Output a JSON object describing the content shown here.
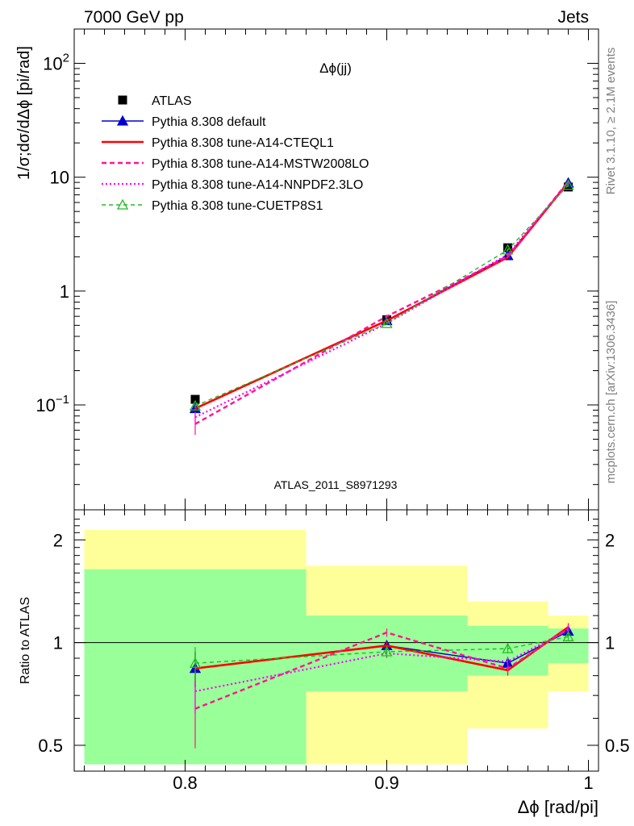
{
  "header": {
    "left": "7000 GeV pp",
    "right": "Jets"
  },
  "side_text": {
    "upper": "Rivet 3.1.10, ≥ 2.1M events",
    "lower": "mcplots.cern.ch [arXiv:1306.3436]"
  },
  "watermark": "ATLAS_2011_S8971293",
  "colors": {
    "atlas": "#000000",
    "default": "#0000cc",
    "a14cteql": "#ff0000",
    "a14mstw": "#ff1493",
    "a14nnpdf": "#ff00ff",
    "cuetp8s1": "#22bb22",
    "band_inner": "#99ff99",
    "band_outer": "#ffff99"
  },
  "chart_data": [
    {
      "type": "line",
      "title": "Δϕ(jj)",
      "ylabel": "1/σ;dσ/dΔϕ [pi/rad]",
      "yscale": "log",
      "ylim": [
        0.012,
        200
      ],
      "xlim": [
        0.745,
        1.005
      ],
      "ytick_labels": [
        "10^-1",
        "1",
        "10",
        "10^2"
      ],
      "legend_position": "top-left",
      "x": [
        0.805,
        0.9,
        0.96,
        0.99
      ],
      "series": [
        {
          "name": "ATLAS",
          "marker": "square",
          "values": [
            0.112,
            0.56,
            2.4,
            8.2
          ]
        },
        {
          "name": "Pythia 8.308 default",
          "marker": "triangle",
          "values": [
            0.093,
            0.55,
            2.05,
            8.9
          ]
        },
        {
          "name": "Pythia 8.308 tune-A14-CTEQL1",
          "marker": "none",
          "values": [
            0.093,
            0.55,
            1.98,
            9.0
          ]
        },
        {
          "name": "Pythia 8.308 tune-A14-MSTW2008LO",
          "marker": "none",
          "dash": "dashed",
          "values": [
            0.068,
            0.6,
            2.0,
            9.2
          ]
        },
        {
          "name": "Pythia 8.308 tune-A14-NNPDF2.3LO",
          "marker": "none",
          "dash": "dotted",
          "values": [
            0.078,
            0.52,
            2.1,
            9.0
          ]
        },
        {
          "name": "Pythia 8.308 tune-CUETP8S1",
          "marker": "open-triangle",
          "dash": "dashed",
          "values": [
            0.098,
            0.52,
            2.3,
            8.5
          ]
        }
      ]
    },
    {
      "type": "line",
      "ylabel": "Ratio to ATLAS",
      "xlabel": "Δϕ [rad/pi]",
      "yscale": "log",
      "ylim": [
        0.42,
        2.45
      ],
      "xlim": [
        0.745,
        1.005
      ],
      "xticks": [
        0.8,
        0.9,
        1
      ],
      "xtick_labels": [
        "0.8",
        "0.9",
        "1"
      ],
      "yticks": [
        0.5,
        1,
        2
      ],
      "ytick_labels": [
        "0.5",
        "1",
        "2"
      ],
      "x": [
        0.805,
        0.9,
        0.96,
        0.99
      ],
      "bands": [
        {
          "x0": 0.75,
          "x1": 0.86,
          "inner": [
            0.44,
            1.64
          ],
          "outer": [
            0.44,
            2.14
          ]
        },
        {
          "x0": 0.86,
          "x1": 0.94,
          "inner": [
            0.72,
            1.2
          ],
          "outer": [
            0.44,
            1.68
          ]
        },
        {
          "x0": 0.94,
          "x1": 0.98,
          "inner": [
            0.8,
            1.12
          ],
          "outer": [
            0.56,
            1.32
          ]
        },
        {
          "x0": 0.98,
          "x1": 1.0,
          "inner": [
            0.87,
            1.1
          ],
          "outer": [
            0.72,
            1.2
          ]
        }
      ],
      "series": [
        {
          "name": "Pythia 8.308 default",
          "values": [
            0.84,
            0.98,
            0.87,
            1.08
          ]
        },
        {
          "name": "Pythia 8.308 tune-A14-CTEQL1",
          "values": [
            0.84,
            0.98,
            0.83,
            1.11
          ]
        },
        {
          "name": "Pythia 8.308 tune-A14-MSTW2008LO",
          "values": [
            0.64,
            1.07,
            0.84,
            1.1
          ]
        },
        {
          "name": "Pythia 8.308 tune-A14-NNPDF2.3LO",
          "values": [
            0.72,
            0.93,
            0.88,
            1.09
          ]
        },
        {
          "name": "Pythia 8.308 tune-CUETP8S1",
          "values": [
            0.87,
            0.94,
            0.96,
            1.04
          ]
        }
      ]
    }
  ]
}
